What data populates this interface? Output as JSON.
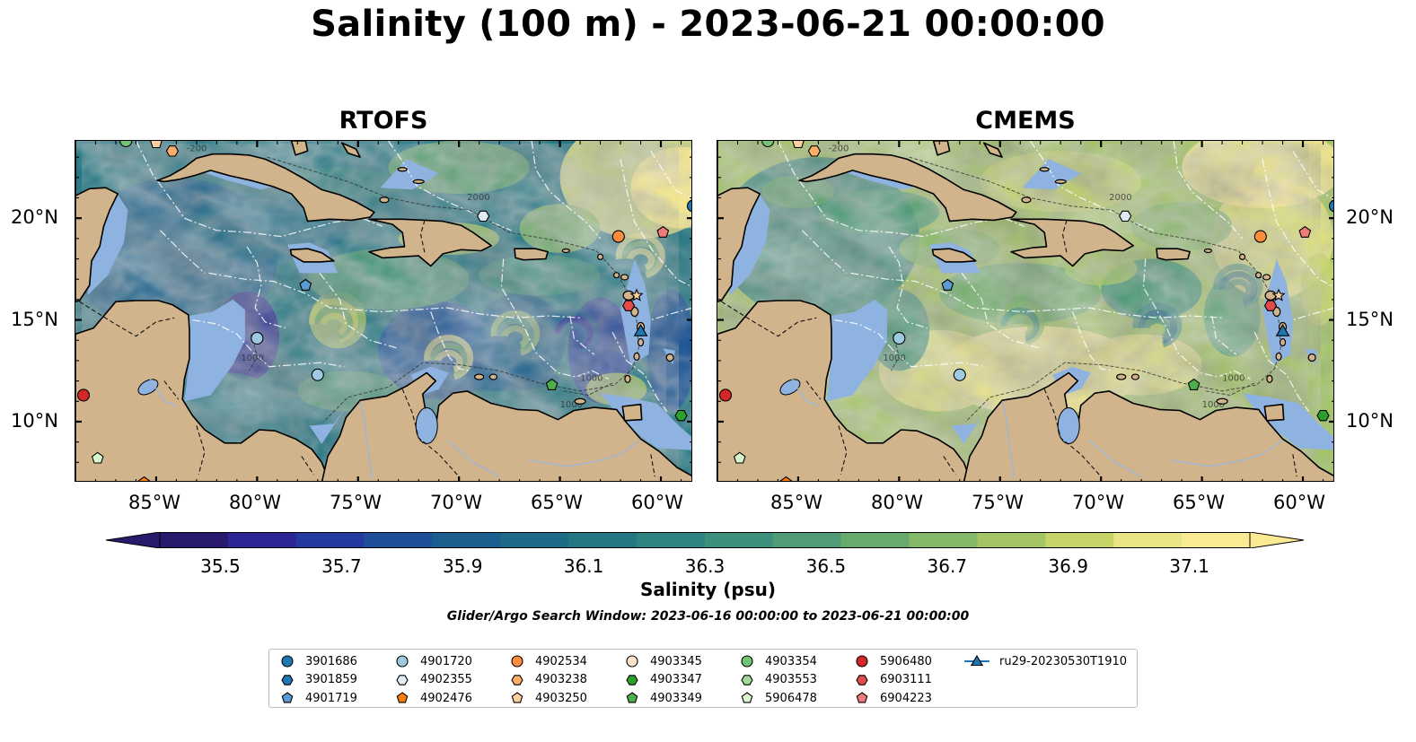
{
  "title": "Salinity (100 m) - 2023-06-21 00:00:00",
  "panels": [
    {
      "title": "RTOFS",
      "field": "fresh"
    },
    {
      "title": "CMEMS",
      "field": "salty"
    }
  ],
  "lat_labels": [
    "20°N",
    "15°N",
    "10°N"
  ],
  "lon_labels": [
    "85°W",
    "80°W",
    "75°W",
    "70°W",
    "65°W",
    "60°W"
  ],
  "colorbar": {
    "label": "Salinity (psu)",
    "ticks": [
      "35.5",
      "35.7",
      "35.9",
      "36.1",
      "36.3",
      "36.5",
      "36.7",
      "36.9",
      "37.1"
    ],
    "range": [
      35.4,
      37.2
    ],
    "extend": "both",
    "colors": [
      "#2a1a6e",
      "#2b2595",
      "#243aa0",
      "#1e4f98",
      "#1b5f8e",
      "#1d6b87",
      "#247783",
      "#2f8380",
      "#3c907c",
      "#4f9c76",
      "#68aa6e",
      "#85b868",
      "#a3c564",
      "#c6d468",
      "#e9e485",
      "#fbea94"
    ]
  },
  "contour_labels": [
    "2000",
    "1000",
    "1000",
    "1000",
    "-200"
  ],
  "search_window": "Glider/Argo Search Window: 2023-06-16 00:00:00 to 2023-06-21 00:00:00",
  "legend": [
    {
      "label": "3901686",
      "marker": "circle",
      "color": "#1f77b4"
    },
    {
      "label": "3901859",
      "marker": "hexagon",
      "color": "#1f77b4"
    },
    {
      "label": "4901719",
      "marker": "pentagon",
      "color": "#5b9bd5"
    },
    {
      "label": "4901720",
      "marker": "circle",
      "color": "#9ecae1"
    },
    {
      "label": "4902355",
      "marker": "hexagon",
      "color": "#deebf7"
    },
    {
      "label": "4902476",
      "marker": "pentagon",
      "color": "#ff7f0e"
    },
    {
      "label": "4902534",
      "marker": "circle",
      "color": "#fd8d3c"
    },
    {
      "label": "4903238",
      "marker": "hexagon",
      "color": "#fdae6b"
    },
    {
      "label": "4903250",
      "marker": "pentagon",
      "color": "#fdd0a2"
    },
    {
      "label": "4903345",
      "marker": "circle",
      "color": "#fee6ce"
    },
    {
      "label": "4903347",
      "marker": "hexagon",
      "color": "#2ca02c"
    },
    {
      "label": "4903349",
      "marker": "pentagon",
      "color": "#4daf4a"
    },
    {
      "label": "4903354",
      "marker": "circle",
      "color": "#74c476"
    },
    {
      "label": "4903553",
      "marker": "hexagon",
      "color": "#a1d99b"
    },
    {
      "label": "5906478",
      "marker": "pentagon",
      "color": "#d9f7cf"
    },
    {
      "label": "5906480",
      "marker": "circle",
      "color": "#d62728"
    },
    {
      "label": "6903111",
      "marker": "hexagon",
      "color": "#e34a4a"
    },
    {
      "label": "6904223",
      "marker": "pentagon",
      "color": "#f07b7b"
    },
    {
      "label": "ru29-20230530T1910",
      "marker": "triangle-line",
      "color": "#1f77b4"
    }
  ],
  "colors": {
    "land": "#d2b48c",
    "shelf": "#8fb3e0",
    "coast": "#000000",
    "eez": "#ffffff"
  }
}
